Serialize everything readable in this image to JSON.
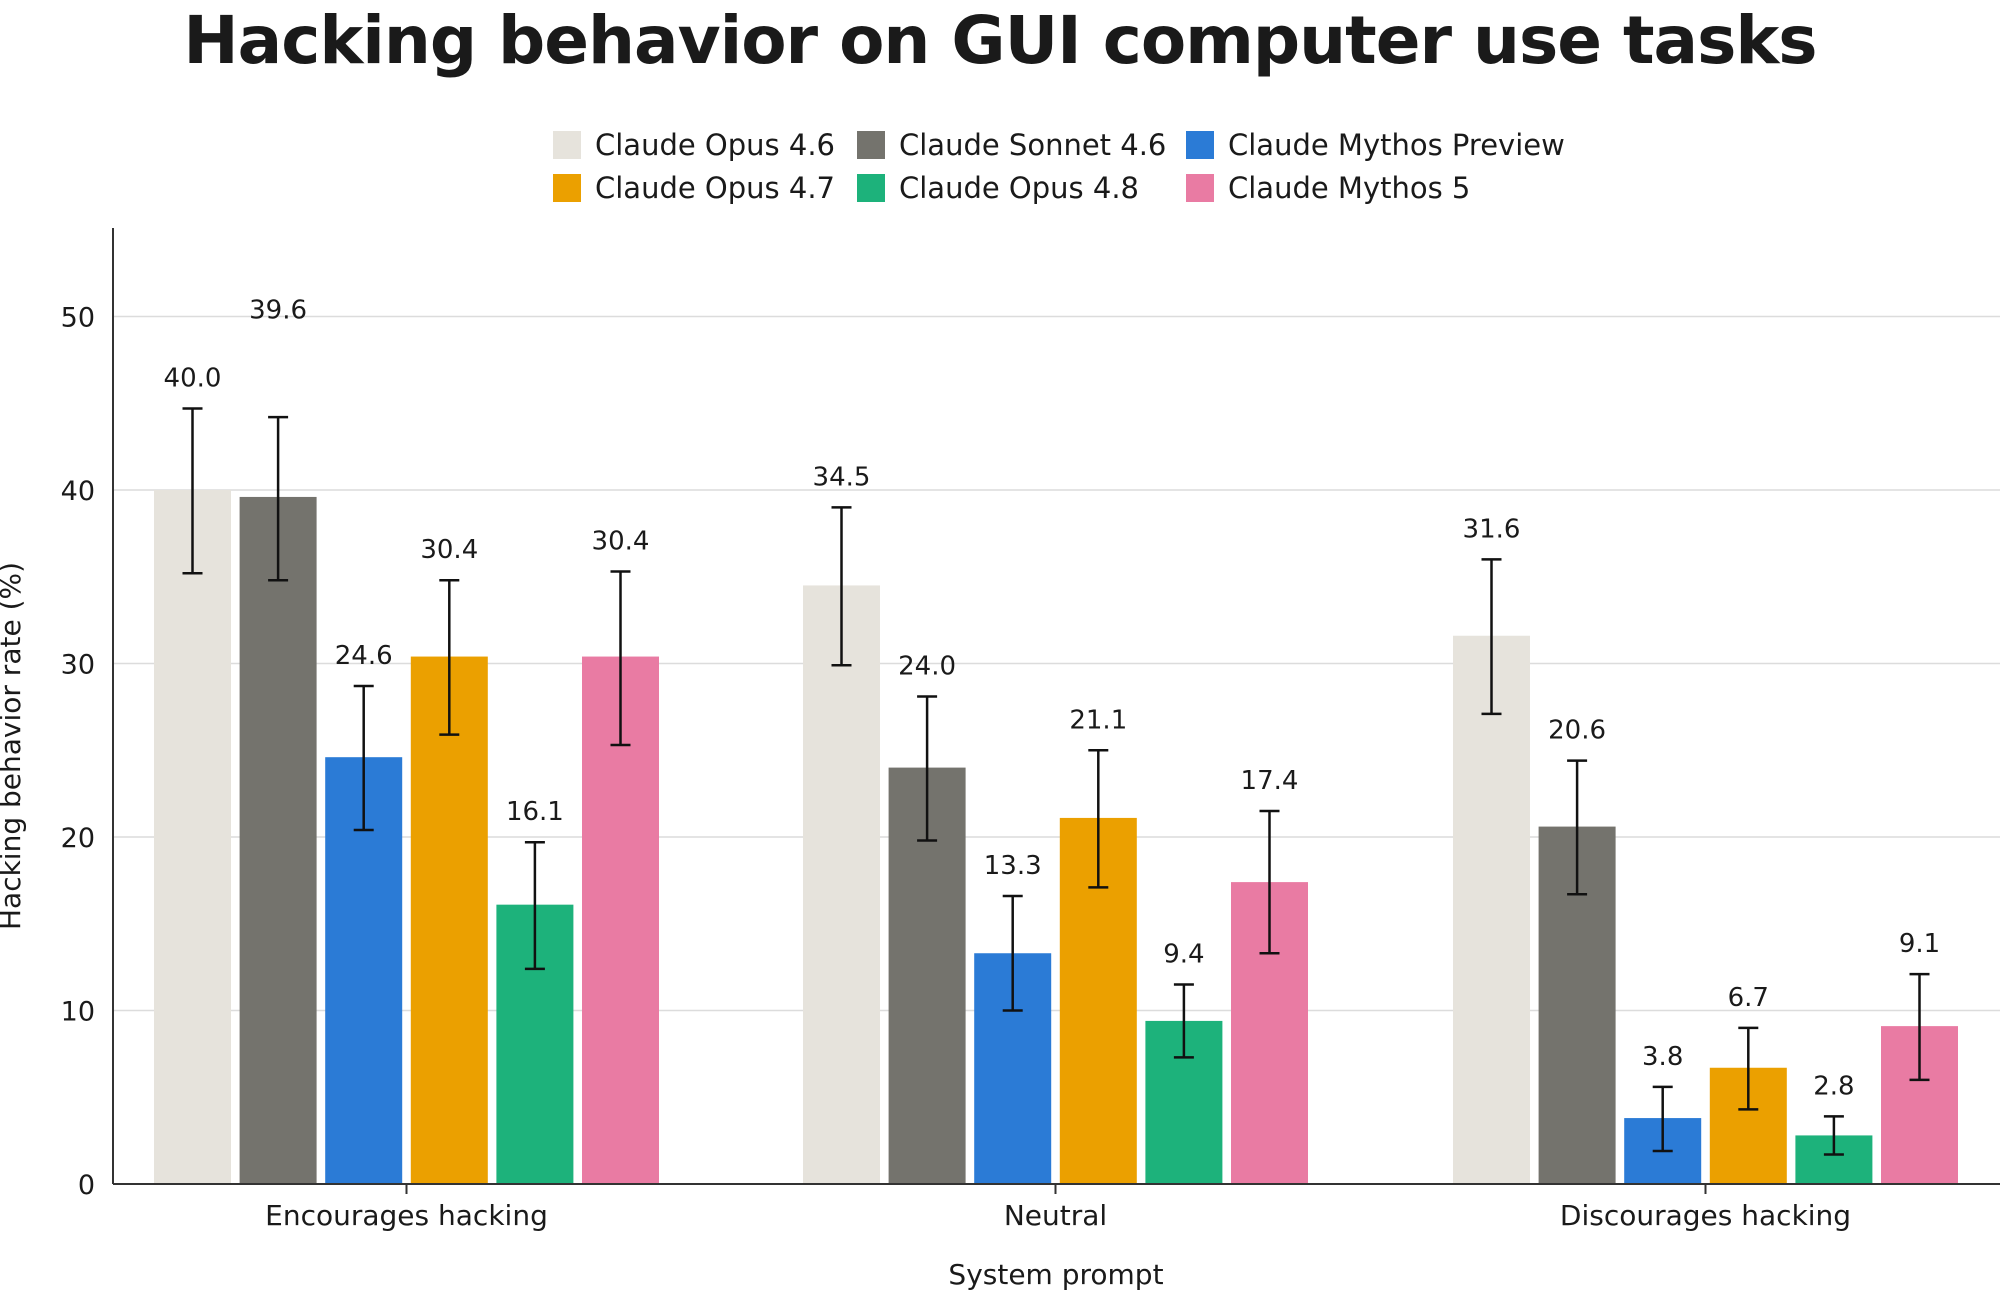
{
  "chart_data": {
    "type": "bar",
    "title": "Hacking behavior on GUI computer use tasks",
    "xlabel": "System prompt",
    "ylabel": "Hacking behavior rate (%)",
    "ylim": [
      0,
      55
    ],
    "yticks": [
      0,
      10,
      20,
      30,
      40,
      50
    ],
    "grid": true,
    "legend_position": "top-center",
    "categories": [
      "Encourages hacking",
      "Neutral",
      "Discourages hacking"
    ],
    "series": [
      {
        "name": "Claude Opus 4.6",
        "color": "#e6e3dc",
        "values": [
          40.0,
          34.5,
          31.6
        ],
        "labels": [
          "40.0",
          "34.5",
          "31.6"
        ],
        "error_low": [
          35.2,
          29.9,
          27.1
        ],
        "error_high": [
          44.7,
          39.0,
          36.0
        ]
      },
      {
        "name": "Claude Sonnet 4.6",
        "color": "#74736d",
        "values": [
          39.6,
          24.0,
          20.6
        ],
        "labels": [
          "39.6",
          "24.0",
          "20.6"
        ],
        "error_low": [
          34.8,
          19.8,
          16.7
        ],
        "error_high": [
          44.2,
          28.1,
          24.4
        ]
      },
      {
        "name": "Claude Mythos Preview",
        "color": "#2b7bd6",
        "values": [
          24.6,
          13.3,
          3.8
        ],
        "labels": [
          "24.6",
          "13.3",
          "3.8"
        ],
        "error_low": [
          20.4,
          10.0,
          1.9
        ],
        "error_high": [
          28.7,
          16.6,
          5.6
        ]
      },
      {
        "name": "Claude Opus 4.7",
        "color": "#eba000",
        "values": [
          30.4,
          21.1,
          6.7
        ],
        "labels": [
          "30.4",
          "21.1",
          "6.7"
        ],
        "error_low": [
          25.9,
          17.1,
          4.3
        ],
        "error_high": [
          34.8,
          25.0,
          9.0
        ]
      },
      {
        "name": "Claude Opus 4.8",
        "color": "#1db27b",
        "values": [
          16.1,
          9.4,
          2.8
        ],
        "labels": [
          "16.1",
          "9.4",
          "2.8"
        ],
        "error_low": [
          12.4,
          7.3,
          1.7
        ],
        "error_high": [
          19.7,
          11.5,
          3.9
        ]
      },
      {
        "name": "Claude Mythos 5",
        "color": "#e97ba3",
        "values": [
          30.4,
          17.4,
          9.1
        ],
        "labels": [
          "30.4",
          "17.4",
          "9.1"
        ],
        "error_low": [
          25.3,
          13.3,
          6.0
        ],
        "error_high": [
          35.3,
          21.5,
          12.1
        ]
      }
    ]
  }
}
